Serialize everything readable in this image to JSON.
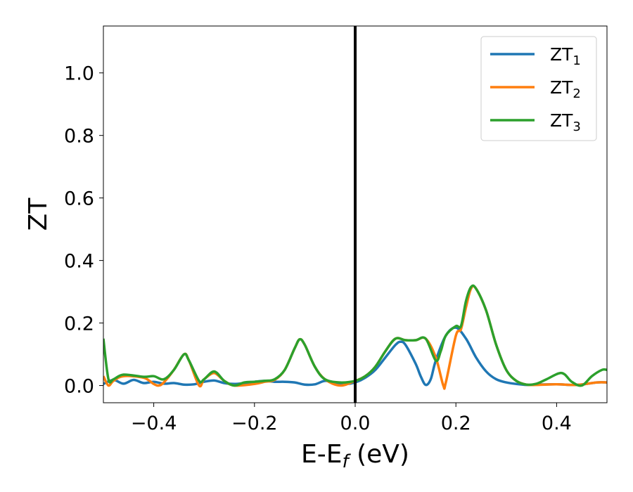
{
  "chart_data": {
    "type": "line",
    "xlabel": "E-E",
    "xlabel_sub": "f",
    "xlabel_unit": " (eV)",
    "ylabel": "ZT",
    "xlim": [
      -0.5,
      0.5
    ],
    "ylim": [
      -0.055,
      1.15
    ],
    "x_ticks": [
      {
        "value": -0.4,
        "label": "−0.4"
      },
      {
        "value": -0.2,
        "label": "−0.2"
      },
      {
        "value": 0.0,
        "label": "0.0"
      },
      {
        "value": 0.2,
        "label": "0.2"
      },
      {
        "value": 0.4,
        "label": "0.4"
      }
    ],
    "y_ticks": [
      {
        "value": 0.0,
        "label": "0.0"
      },
      {
        "value": 0.2,
        "label": "0.2"
      },
      {
        "value": 0.4,
        "label": "0.4"
      },
      {
        "value": 0.6,
        "label": "0.6"
      },
      {
        "value": 0.8,
        "label": "0.8"
      },
      {
        "value": 1.0,
        "label": "1.0"
      }
    ],
    "grid": false,
    "legend_position": "top-right",
    "vline": {
      "x": 0.0,
      "color": "#000000"
    },
    "series": [
      {
        "name": "ZT",
        "sub": "1",
        "color": "#1f77b4",
        "points": [
          [
            -0.5,
            0.005
          ],
          [
            -0.48,
            0.018
          ],
          [
            -0.46,
            0.006
          ],
          [
            -0.44,
            0.018
          ],
          [
            -0.42,
            0.008
          ],
          [
            -0.4,
            0.012
          ],
          [
            -0.38,
            0.006
          ],
          [
            -0.36,
            0.008
          ],
          [
            -0.34,
            0.003
          ],
          [
            -0.32,
            0.004
          ],
          [
            -0.3,
            0.012
          ],
          [
            -0.28,
            0.016
          ],
          [
            -0.26,
            0.008
          ],
          [
            -0.24,
            0.005
          ],
          [
            -0.22,
            0.008
          ],
          [
            -0.2,
            0.012
          ],
          [
            -0.18,
            0.015
          ],
          [
            -0.16,
            0.012
          ],
          [
            -0.14,
            0.012
          ],
          [
            -0.12,
            0.01
          ],
          [
            -0.1,
            0.003
          ],
          [
            -0.08,
            0.004
          ],
          [
            -0.06,
            0.015
          ],
          [
            -0.04,
            0.01
          ],
          [
            -0.02,
            0.005
          ],
          [
            0.0,
            0.01
          ],
          [
            0.02,
            0.025
          ],
          [
            0.04,
            0.05
          ],
          [
            0.06,
            0.09
          ],
          [
            0.08,
            0.13
          ],
          [
            0.09,
            0.14
          ],
          [
            0.1,
            0.13
          ],
          [
            0.12,
            0.07
          ],
          [
            0.13,
            0.03
          ],
          [
            0.14,
            0.002
          ],
          [
            0.15,
            0.02
          ],
          [
            0.16,
            0.08
          ],
          [
            0.18,
            0.16
          ],
          [
            0.2,
            0.185
          ],
          [
            0.22,
            0.15
          ],
          [
            0.24,
            0.09
          ],
          [
            0.26,
            0.045
          ],
          [
            0.28,
            0.02
          ],
          [
            0.3,
            0.01
          ],
          [
            0.32,
            0.005
          ],
          [
            0.34,
            0.002
          ],
          [
            0.36,
            0.003
          ],
          [
            0.4,
            0.004
          ],
          [
            0.44,
            0.002
          ],
          [
            0.48,
            0.01
          ],
          [
            0.5,
            0.01
          ]
        ]
      },
      {
        "name": "ZT",
        "sub": "2",
        "color": "#ff7f0e",
        "points": [
          [
            -0.5,
            0.03
          ],
          [
            -0.49,
            0.0
          ],
          [
            -0.48,
            0.015
          ],
          [
            -0.46,
            0.03
          ],
          [
            -0.42,
            0.025
          ],
          [
            -0.4,
            0.005
          ],
          [
            -0.39,
            0.0
          ],
          [
            -0.38,
            0.01
          ],
          [
            -0.36,
            0.05
          ],
          [
            -0.34,
            0.1
          ],
          [
            -0.33,
            0.08
          ],
          [
            -0.31,
            0.0
          ],
          [
            -0.3,
            0.02
          ],
          [
            -0.28,
            0.04
          ],
          [
            -0.26,
            0.015
          ],
          [
            -0.24,
            0.0
          ],
          [
            -0.2,
            0.005
          ],
          [
            -0.18,
            0.012
          ],
          [
            -0.16,
            0.018
          ],
          [
            -0.14,
            0.05
          ],
          [
            -0.12,
            0.12
          ],
          [
            -0.11,
            0.148
          ],
          [
            -0.1,
            0.13
          ],
          [
            -0.08,
            0.06
          ],
          [
            -0.06,
            0.02
          ],
          [
            -0.03,
            0.0
          ],
          [
            0.0,
            0.015
          ],
          [
            0.02,
            0.03
          ],
          [
            0.04,
            0.06
          ],
          [
            0.06,
            0.11
          ],
          [
            0.08,
            0.15
          ],
          [
            0.1,
            0.145
          ],
          [
            0.12,
            0.145
          ],
          [
            0.14,
            0.15
          ],
          [
            0.16,
            0.09
          ],
          [
            0.175,
            0.0
          ],
          [
            0.18,
            0.01
          ],
          [
            0.2,
            0.16
          ],
          [
            0.21,
            0.18
          ],
          [
            0.22,
            0.25
          ],
          [
            0.23,
            0.31
          ],
          [
            0.24,
            0.31
          ],
          [
            0.26,
            0.24
          ],
          [
            0.28,
            0.13
          ],
          [
            0.3,
            0.05
          ],
          [
            0.32,
            0.015
          ],
          [
            0.34,
            0.003
          ],
          [
            0.36,
            0.002
          ],
          [
            0.4,
            0.004
          ],
          [
            0.44,
            0.002
          ],
          [
            0.48,
            0.01
          ],
          [
            0.5,
            0.01
          ]
        ]
      },
      {
        "name": "ZT",
        "sub": "3",
        "color": "#2ca02c",
        "points": [
          [
            -0.5,
            0.15
          ],
          [
            -0.49,
            0.02
          ],
          [
            -0.48,
            0.02
          ],
          [
            -0.46,
            0.035
          ],
          [
            -0.42,
            0.028
          ],
          [
            -0.4,
            0.03
          ],
          [
            -0.38,
            0.02
          ],
          [
            -0.36,
            0.05
          ],
          [
            -0.34,
            0.1
          ],
          [
            -0.33,
            0.08
          ],
          [
            -0.31,
            0.015
          ],
          [
            -0.3,
            0.02
          ],
          [
            -0.28,
            0.045
          ],
          [
            -0.26,
            0.015
          ],
          [
            -0.24,
            0.0
          ],
          [
            -0.22,
            0.01
          ],
          [
            -0.2,
            0.012
          ],
          [
            -0.18,
            0.015
          ],
          [
            -0.16,
            0.02
          ],
          [
            -0.14,
            0.05
          ],
          [
            -0.12,
            0.12
          ],
          [
            -0.11,
            0.148
          ],
          [
            -0.1,
            0.13
          ],
          [
            -0.08,
            0.06
          ],
          [
            -0.06,
            0.02
          ],
          [
            -0.03,
            0.01
          ],
          [
            0.0,
            0.015
          ],
          [
            0.02,
            0.03
          ],
          [
            0.04,
            0.06
          ],
          [
            0.06,
            0.11
          ],
          [
            0.08,
            0.15
          ],
          [
            0.1,
            0.145
          ],
          [
            0.12,
            0.145
          ],
          [
            0.14,
            0.15
          ],
          [
            0.16,
            0.08
          ],
          [
            0.17,
            0.11
          ],
          [
            0.18,
            0.16
          ],
          [
            0.2,
            0.19
          ],
          [
            0.21,
            0.19
          ],
          [
            0.22,
            0.27
          ],
          [
            0.23,
            0.315
          ],
          [
            0.24,
            0.31
          ],
          [
            0.26,
            0.24
          ],
          [
            0.28,
            0.13
          ],
          [
            0.3,
            0.05
          ],
          [
            0.32,
            0.015
          ],
          [
            0.34,
            0.003
          ],
          [
            0.36,
            0.006
          ],
          [
            0.38,
            0.02
          ],
          [
            0.41,
            0.04
          ],
          [
            0.43,
            0.012
          ],
          [
            0.45,
            0.0
          ],
          [
            0.47,
            0.03
          ],
          [
            0.49,
            0.05
          ],
          [
            0.5,
            0.05
          ]
        ]
      }
    ]
  }
}
